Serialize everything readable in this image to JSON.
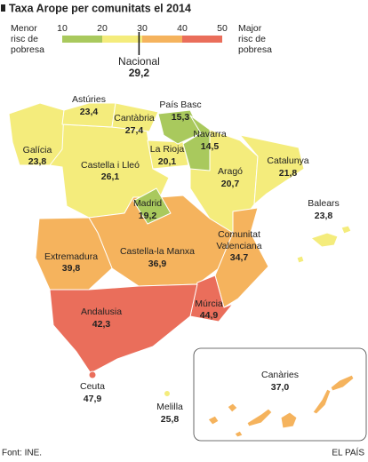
{
  "title": "Taxa Arope per comunitats el 2014",
  "legend": {
    "low_text": [
      "Menor",
      "risc de",
      "pobresa"
    ],
    "high_text": [
      "Major",
      "risc de",
      "pobresa"
    ],
    "ticks": [
      10,
      20,
      30,
      40,
      50
    ],
    "colors": [
      "#a9c95d",
      "#f4ec7c",
      "#f5b35d",
      "#ea6e5b"
    ],
    "national": {
      "name": "Nacional",
      "value": 29.2,
      "label": "29,2"
    }
  },
  "regions": [
    {
      "name": "Galícia",
      "value": 23.8,
      "label": "23,8"
    },
    {
      "name": "Astúries",
      "value": 23.4,
      "label": "23,4"
    },
    {
      "name": "Cantàbria",
      "value": 27.4,
      "label": "27,4"
    },
    {
      "name": "País Basc",
      "value": 15.3,
      "label": "15,3"
    },
    {
      "name": "Navarra",
      "value": 14.5,
      "label": "14,5"
    },
    {
      "name": "La Rioja",
      "value": 20.1,
      "label": "20,1"
    },
    {
      "name": "Castella i Lleó",
      "value": 26.1,
      "label": "26,1"
    },
    {
      "name": "Aragó",
      "value": 20.7,
      "label": "20,7"
    },
    {
      "name": "Catalunya",
      "value": 21.8,
      "label": "21,8"
    },
    {
      "name": "Balears",
      "value": 23.8,
      "label": "23,8"
    },
    {
      "name": "Madrid",
      "value": 19.2,
      "label": "19,2"
    },
    {
      "name": "Extremadura",
      "value": 39.8,
      "label": "39,8"
    },
    {
      "name": "Castella-la Manxa",
      "value": 36.9,
      "label": "36,9"
    },
    {
      "name": [
        "Comunitat",
        "Valenciana"
      ],
      "value": 34.7,
      "label": "34,7"
    },
    {
      "name": "Andalusia",
      "value": 42.3,
      "label": "42,3"
    },
    {
      "name": "Múrcia",
      "value": 44.9,
      "label": "44,9"
    },
    {
      "name": "Ceuta",
      "value": 47.9,
      "label": "47,9"
    },
    {
      "name": "Melilla",
      "value": 25.8,
      "label": "25,8"
    },
    {
      "name": "Canàries",
      "value": 37.0,
      "label": "37,0"
    }
  ],
  "source": "Font: INE.",
  "credit": "EL PAÍS"
}
